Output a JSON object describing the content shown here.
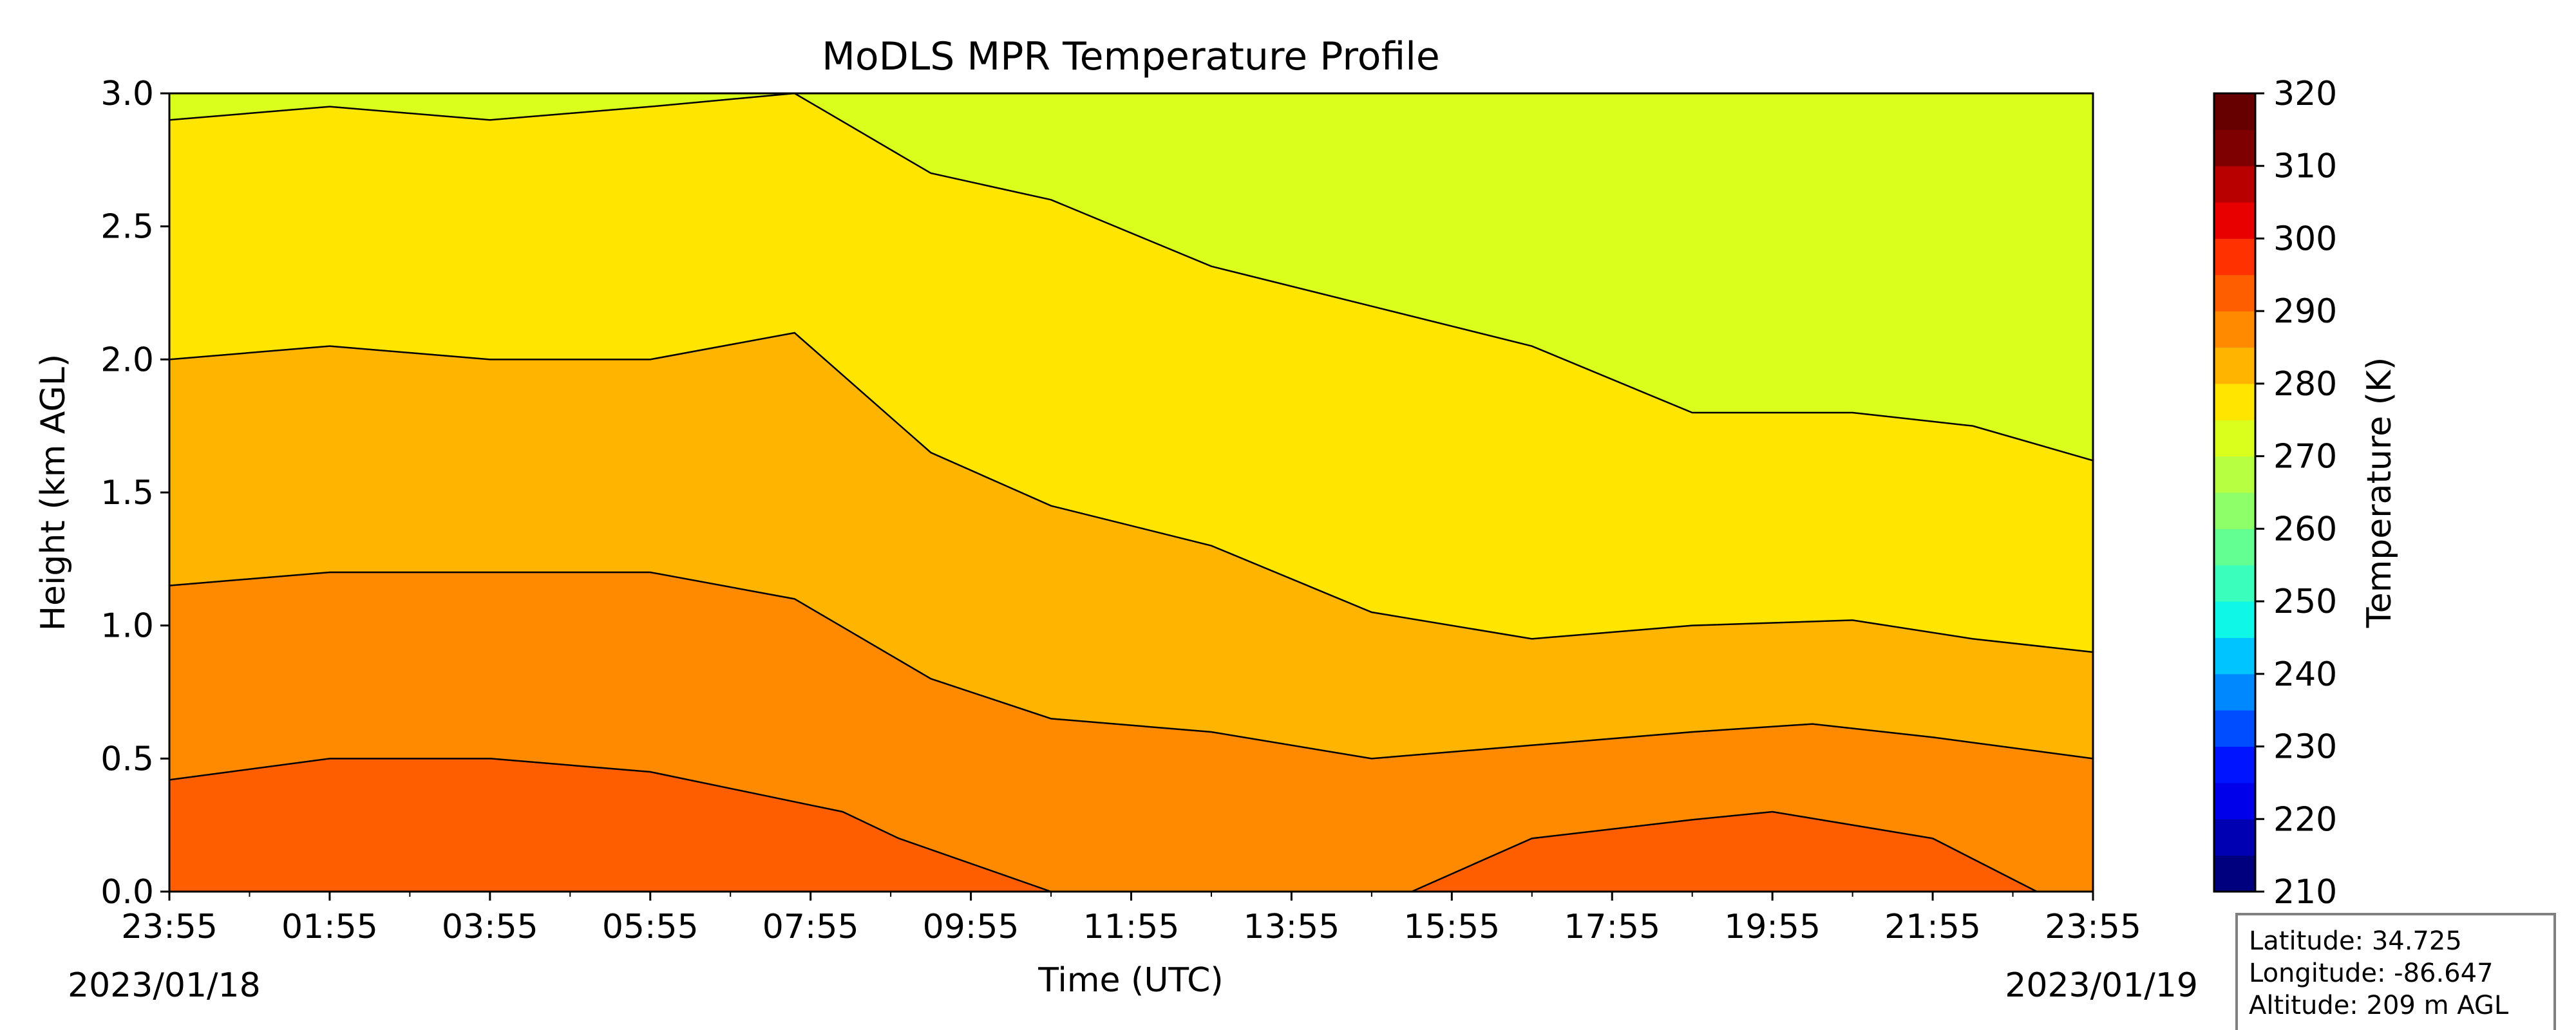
{
  "chart_data": {
    "type": "heatmap",
    "title": "MoDLS MPR Temperature Profile",
    "xlabel": "Time (UTC)",
    "ylabel": "Height (km AGL)",
    "x_tick_labels": [
      "23:55",
      "01:55",
      "03:55",
      "05:55",
      "07:55",
      "09:55",
      "11:55",
      "13:55",
      "15:55",
      "17:55",
      "19:55",
      "21:55",
      "23:55"
    ],
    "x_range_hours": [
      0,
      24
    ],
    "start_date": "2023/01/18",
    "end_date": "2023/01/19",
    "ylim": [
      0.0,
      3.0
    ],
    "y_ticks": [
      0.0,
      0.5,
      1.0,
      1.5,
      2.0,
      2.5,
      3.0
    ],
    "y_tick_labels": [
      "0.0",
      "0.5",
      "1.0",
      "1.5",
      "2.0",
      "2.5",
      "3.0"
    ],
    "colorbar": {
      "label": "Temperature (K)",
      "range": [
        210,
        320
      ],
      "step": 5,
      "ticks": [
        210,
        220,
        230,
        240,
        250,
        260,
        270,
        280,
        290,
        300,
        310,
        320
      ],
      "tick_labels": [
        "210",
        "220",
        "230",
        "240",
        "250",
        "260",
        "270",
        "280",
        "290",
        "300",
        "310",
        "320"
      ],
      "colors": [
        "#00007f",
        "#0000b2",
        "#0000ea",
        "#0014ff",
        "#004cff",
        "#0088ff",
        "#00c4ff",
        "#0ff8e7",
        "#3affbc",
        "#64ff93",
        "#8eff69",
        "#b6ff41",
        "#dbff1c",
        "#ffe500",
        "#ffb400",
        "#ff8a00",
        "#ff5e00",
        "#ff3100",
        "#e80000",
        "#b80000",
        "#7f0000",
        "#660000"
      ]
    },
    "contour_levels_K": [
      270,
      275,
      280,
      285,
      290
    ],
    "contours": [
      {
        "level": 290,
        "x_hours": [
          0,
          2,
          4,
          6,
          8.4,
          9.1,
          11,
          14,
          15.5,
          17,
          19,
          20,
          22,
          23.3
        ],
        "height_km": [
          0.42,
          0.5,
          0.5,
          0.45,
          0.3,
          0.2,
          0,
          0,
          0,
          0.2,
          0.27,
          0.3,
          0.2,
          0
        ]
      },
      {
        "level": 285,
        "x_hours": [
          0,
          2,
          4,
          6,
          7.8,
          9.5,
          11,
          13,
          15,
          17,
          19,
          20.5,
          22,
          24
        ],
        "height_km": [
          1.15,
          1.2,
          1.2,
          1.2,
          1.1,
          0.8,
          0.65,
          0.6,
          0.5,
          0.55,
          0.6,
          0.63,
          0.58,
          0.5
        ]
      },
      {
        "level": 280,
        "x_hours": [
          0,
          2,
          4,
          6,
          7.8,
          9.5,
          11,
          13,
          15,
          17,
          19,
          21,
          22.5,
          24
        ],
        "height_km": [
          2.0,
          2.05,
          2.0,
          2.0,
          2.1,
          1.65,
          1.45,
          1.3,
          1.05,
          0.95,
          1.0,
          1.02,
          0.95,
          0.9
        ]
      },
      {
        "level": 275,
        "x_hours": [
          0,
          2,
          4,
          6,
          7.8,
          9.5,
          11,
          13,
          15,
          17,
          19,
          21,
          22.5,
          24
        ],
        "height_km": [
          2.9,
          2.95,
          2.9,
          2.95,
          3.0,
          2.7,
          2.6,
          2.35,
          2.2,
          2.05,
          1.8,
          1.8,
          1.75,
          1.62
        ]
      }
    ],
    "grid": false
  },
  "station": {
    "latitude": "Latitude: 34.725",
    "longitude": "Longitude: -86.647",
    "altitude": "Altitude: 209 m AGL"
  }
}
